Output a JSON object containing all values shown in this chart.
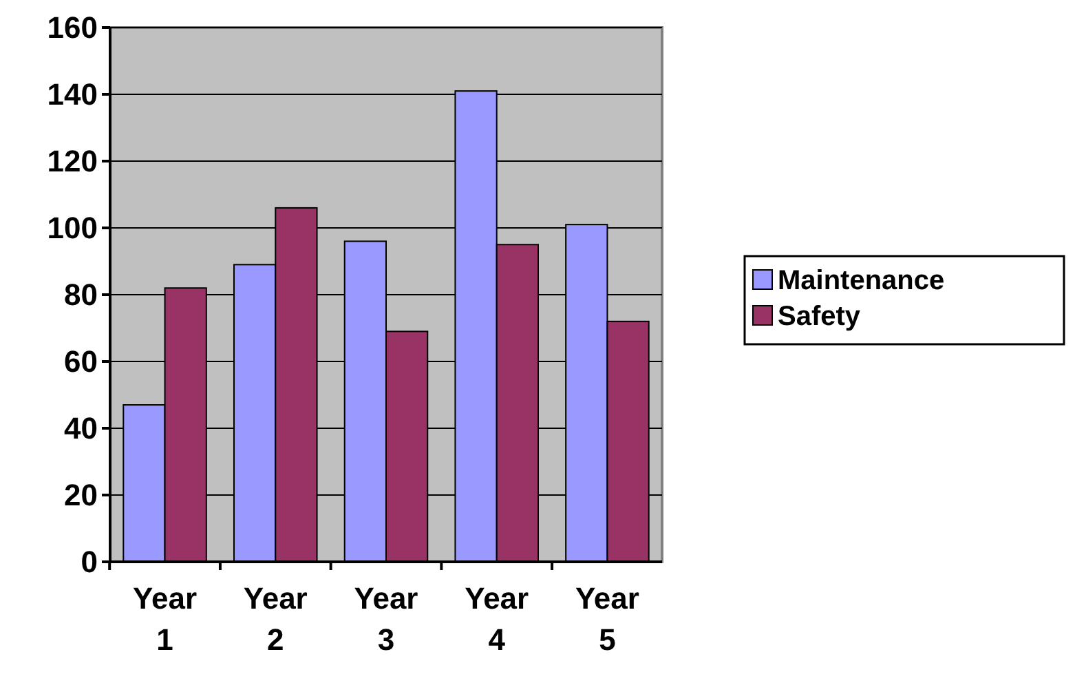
{
  "chart_data": {
    "type": "bar",
    "categories": [
      "Year 1",
      "Year 2",
      "Year 3",
      "Year 4",
      "Year 5"
    ],
    "series": [
      {
        "name": "Maintenance",
        "color": "#9999ff",
        "values": [
          47,
          89,
          96,
          141,
          101
        ]
      },
      {
        "name": "Safety",
        "color": "#993366",
        "values": [
          82,
          106,
          69,
          95,
          72
        ]
      }
    ],
    "ylim": [
      0,
      160
    ],
    "yticks": [
      0,
      20,
      40,
      60,
      80,
      100,
      120,
      140,
      160
    ],
    "grid": "y",
    "legend": "right"
  }
}
